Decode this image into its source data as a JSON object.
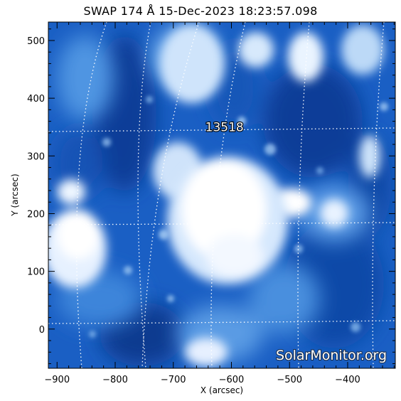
{
  "title": "SWAP 174 Å 15-Dec-2023 18:23:57.098",
  "x_axis": {
    "label": "X (arcsec)",
    "ticks": [
      -900,
      -800,
      -700,
      -600,
      -500,
      -400
    ],
    "range": [
      -915,
      -318
    ]
  },
  "y_axis": {
    "label": "Y (arcsec)",
    "ticks": [
      0,
      100,
      200,
      300,
      400,
      500
    ],
    "range": [
      -68,
      532
    ]
  },
  "active_region": {
    "label": "13518",
    "x": -612,
    "y": 343
  },
  "watermark": "SolarMonitor.org",
  "colors": {
    "background_dark": "#0a3f9a",
    "mid_blue": "#2f7bd8",
    "light_blue": "#8dc0f2",
    "bright": "#ffffff",
    "grid": "#ffffff"
  }
}
